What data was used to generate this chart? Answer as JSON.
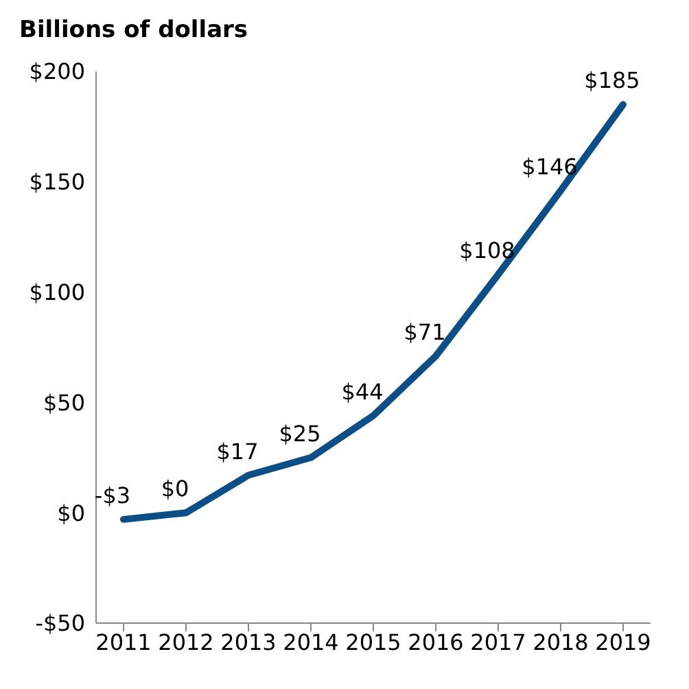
{
  "chart_data": {
    "type": "line",
    "ylabel": "Billions of dollars",
    "categories": [
      "2011",
      "2012",
      "2013",
      "2014",
      "2015",
      "2016",
      "2017",
      "2018",
      "2019"
    ],
    "series": [
      {
        "color": "#0b4f86",
        "values": [
          -3,
          0,
          17,
          25,
          44,
          71,
          108,
          146,
          185
        ],
        "value_labels": [
          "-$3",
          "$0",
          "$17",
          "$25",
          "$44",
          "$71",
          "$108",
          "$146",
          "$185"
        ]
      }
    ],
    "ylim": [
      -50,
      200
    ],
    "yticks": [
      {
        "value": -50,
        "label": "-$50"
      },
      {
        "value": 0,
        "label": "$0"
      },
      {
        "value": 50,
        "label": "$50"
      },
      {
        "value": 100,
        "label": "$100"
      },
      {
        "value": 150,
        "label": "$150"
      },
      {
        "value": 200,
        "label": "$200"
      }
    ],
    "grid": false,
    "legend": false,
    "marker": "none",
    "line_style": "solid"
  }
}
